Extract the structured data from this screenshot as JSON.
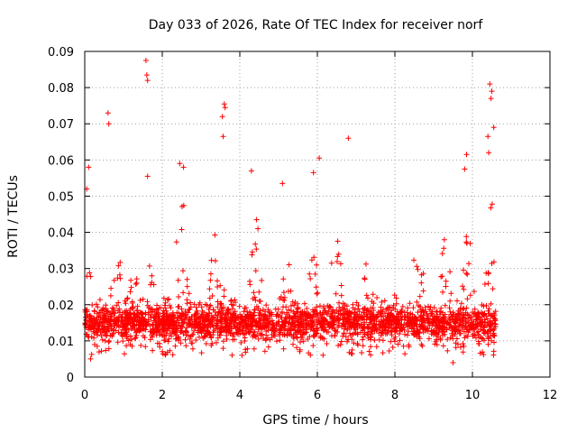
{
  "chart_data": {
    "type": "scatter",
    "title": "Day 033 of 2026, Rate Of TEC Index for receiver norf",
    "xlabel": "GPS time / hours",
    "ylabel": "ROTI / TECUs",
    "xlim": [
      0,
      12
    ],
    "ylim": [
      0,
      0.09
    ],
    "xticks": [
      "0",
      "2",
      "4",
      "6",
      "8",
      "10",
      "12"
    ],
    "yticks": [
      "0",
      "0.01",
      "0.02",
      "0.03",
      "0.04",
      "0.05",
      "0.06",
      "0.07",
      "0.08",
      "0.09"
    ],
    "grid": true,
    "marker": "+",
    "color": "#ff0000",
    "data_extent_hours": [
      0.0,
      10.6
    ],
    "notable_points": [
      {
        "x": 0.1,
        "y": 0.058
      },
      {
        "x": 0.05,
        "y": 0.052
      },
      {
        "x": 0.6,
        "y": 0.073
      },
      {
        "x": 0.62,
        "y": 0.07
      },
      {
        "x": 1.58,
        "y": 0.0875
      },
      {
        "x": 1.6,
        "y": 0.0835
      },
      {
        "x": 1.62,
        "y": 0.082
      },
      {
        "x": 1.62,
        "y": 0.0555
      },
      {
        "x": 2.45,
        "y": 0.059
      },
      {
        "x": 2.55,
        "y": 0.058
      },
      {
        "x": 3.6,
        "y": 0.0755
      },
      {
        "x": 3.62,
        "y": 0.0745
      },
      {
        "x": 3.55,
        "y": 0.072
      },
      {
        "x": 3.57,
        "y": 0.0665
      },
      {
        "x": 4.3,
        "y": 0.057
      },
      {
        "x": 5.1,
        "y": 0.0535
      },
      {
        "x": 5.9,
        "y": 0.0565
      },
      {
        "x": 6.05,
        "y": 0.0605
      },
      {
        "x": 6.8,
        "y": 0.066
      },
      {
        "x": 9.85,
        "y": 0.0615
      },
      {
        "x": 9.8,
        "y": 0.0575
      },
      {
        "x": 10.4,
        "y": 0.0665
      },
      {
        "x": 10.45,
        "y": 0.081
      },
      {
        "x": 10.5,
        "y": 0.079
      },
      {
        "x": 10.48,
        "y": 0.077
      },
      {
        "x": 10.55,
        "y": 0.069
      },
      {
        "x": 10.42,
        "y": 0.062
      },
      {
        "x": 0.15,
        "y": 0.005
      },
      {
        "x": 9.5,
        "y": 0.004
      }
    ],
    "bulk_distribution": {
      "y_median": 0.013,
      "y_typical_range": [
        0.005,
        0.03
      ]
    }
  }
}
